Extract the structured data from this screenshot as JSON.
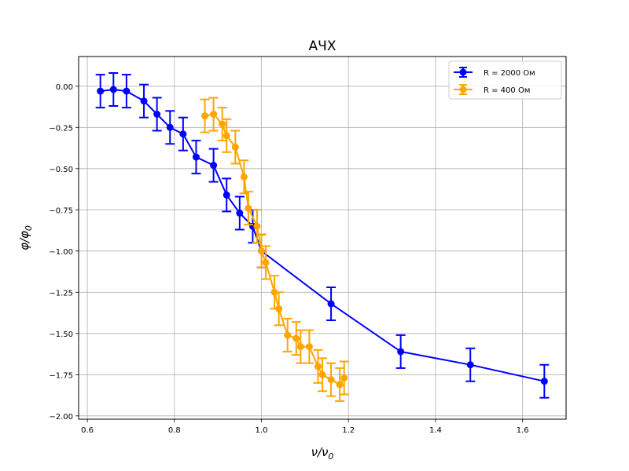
{
  "chart_data": {
    "type": "line",
    "title": "АЧХ",
    "xlabel": "ν/ν",
    "xlabel_sub": "0",
    "ylabel": "φ/φ",
    "ylabel_sub": "0",
    "xlim": [
      0.58,
      1.7
    ],
    "ylim": [
      -2.02,
      0.18
    ],
    "xticks": [
      0.6,
      0.8,
      1.0,
      1.2,
      1.4,
      1.6
    ],
    "xtick_labels": [
      "0.6",
      "0.8",
      "1.0",
      "1.2",
      "1.4",
      "1.6"
    ],
    "yticks": [
      0.0,
      -0.25,
      -0.5,
      -0.75,
      -1.0,
      -1.25,
      -1.5,
      -1.75,
      -2.0
    ],
    "ytick_labels": [
      "0.00",
      "−0.25",
      "−0.50",
      "−0.75",
      "−1.00",
      "−1.25",
      "−1.50",
      "−1.75",
      "−2.00"
    ],
    "grid": true,
    "legend_position": "top-right",
    "series": [
      {
        "name": "R = 2000 Ом",
        "color": "#0000ff",
        "error": 0.1,
        "x": [
          0.63,
          0.66,
          0.69,
          0.73,
          0.76,
          0.79,
          0.82,
          0.85,
          0.89,
          0.92,
          0.95,
          0.98,
          1.0,
          1.16,
          1.32,
          1.48,
          1.65
        ],
        "y": [
          -0.03,
          -0.02,
          -0.03,
          -0.09,
          -0.17,
          -0.25,
          -0.29,
          -0.43,
          -0.48,
          -0.66,
          -0.77,
          -0.85,
          -1.0,
          -1.32,
          -1.61,
          -1.69,
          -1.79
        ]
      },
      {
        "name": "R = 400 Ом",
        "color": "#ffa500",
        "error": 0.1,
        "x": [
          0.87,
          0.89,
          0.91,
          0.92,
          0.94,
          0.96,
          0.97,
          0.99,
          1.0,
          1.01,
          1.03,
          1.04,
          1.06,
          1.08,
          1.09,
          1.11,
          1.13,
          1.14,
          1.16,
          1.18,
          1.19
        ],
        "y": [
          -0.18,
          -0.17,
          -0.23,
          -0.3,
          -0.37,
          -0.55,
          -0.74,
          -0.85,
          -1.0,
          -1.07,
          -1.25,
          -1.35,
          -1.51,
          -1.53,
          -1.58,
          -1.58,
          -1.7,
          -1.75,
          -1.78,
          -1.81,
          -1.77
        ]
      }
    ]
  }
}
